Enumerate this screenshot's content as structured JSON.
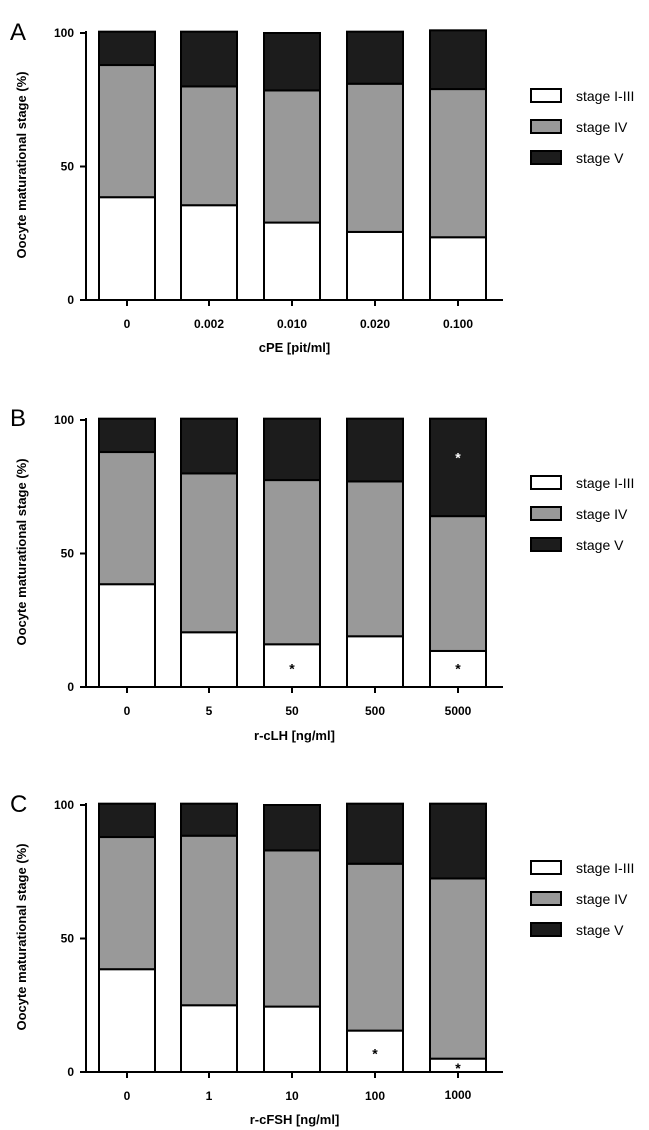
{
  "colors": {
    "stage_I_III": "#ffffff",
    "stage_IV": "#999999",
    "stage_V": "#1c1c1c"
  },
  "chart_data": [
    {
      "type": "bar",
      "stacked": true,
      "panel": "A",
      "xlabel": "cPE [pit/ml]",
      "ylabel": "Oocyte maturational stage (%)",
      "ylim": [
        0,
        100
      ],
      "yticks": [
        "0",
        "50",
        "100"
      ],
      "categories": [
        "0",
        "0.002",
        "0.010",
        "0.020",
        "0.100"
      ],
      "series": [
        {
          "name": "stage I-III",
          "values": [
            38.5,
            35.5,
            29,
            25.5,
            23.5
          ]
        },
        {
          "name": "stage IV",
          "values": [
            49.5,
            44.5,
            49.5,
            55.5,
            55.5
          ]
        },
        {
          "name": "stage V",
          "values": [
            12.5,
            20.5,
            21.5,
            19.5,
            22
          ]
        }
      ],
      "annotations": [],
      "legend": "right"
    },
    {
      "type": "bar",
      "stacked": true,
      "panel": "B",
      "xlabel": "r-cLH [ng/ml]",
      "ylabel": "Oocyte maturational stage (%)",
      "ylim": [
        0,
        100
      ],
      "yticks": [
        "0",
        "50",
        "100"
      ],
      "categories": [
        "0",
        "5",
        "50",
        "500",
        "5000"
      ],
      "series": [
        {
          "name": "stage I-III",
          "values": [
            38.5,
            20.5,
            16,
            19,
            13.5
          ]
        },
        {
          "name": "stage IV",
          "values": [
            49.5,
            59.5,
            61.5,
            58,
            50.5
          ]
        },
        {
          "name": "stage V",
          "values": [
            12.5,
            20.5,
            23,
            23.5,
            36.5
          ]
        }
      ],
      "annotations": [
        {
          "text": "*",
          "category": "50",
          "y": 7
        },
        {
          "text": "*",
          "category": "5000",
          "y": 7
        },
        {
          "text": "*",
          "category": "5000",
          "y": 86
        }
      ],
      "legend": "right"
    },
    {
      "type": "bar",
      "stacked": true,
      "panel": "C",
      "xlabel": "r-cFSH [ng/ml]",
      "ylabel": "Oocyte maturational stage (%)",
      "ylim": [
        0,
        100
      ],
      "yticks": [
        "0",
        "50",
        "100"
      ],
      "categories": [
        "0",
        "1",
        "10",
        "100",
        "1000"
      ],
      "series": [
        {
          "name": "stage I-III",
          "values": [
            38.5,
            25,
            24.5,
            15.5,
            5
          ]
        },
        {
          "name": "stage IV",
          "values": [
            49.5,
            63.5,
            58.5,
            62.5,
            67.5
          ]
        },
        {
          "name": "stage V",
          "values": [
            12.5,
            12,
            17,
            22.5,
            28
          ]
        }
      ],
      "annotations": [
        {
          "text": "*",
          "category": "100",
          "y": 7
        },
        {
          "text": "*",
          "category": "1000",
          "y": 1.5
        }
      ],
      "legend": "right"
    }
  ]
}
